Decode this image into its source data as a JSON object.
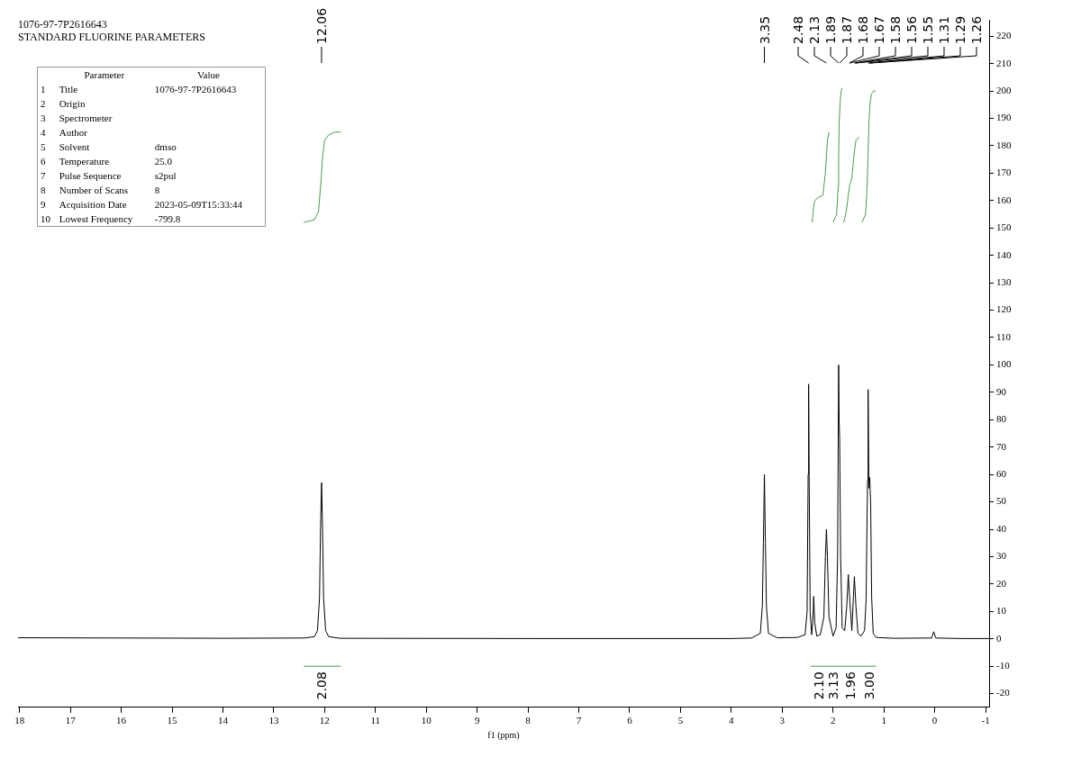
{
  "chart_data": {
    "type": "line",
    "title": "1076-97-7P2616643",
    "subtitle": "STANDARD FLUORINE PARAMETERS",
    "xlabel": "f1 (ppm)",
    "xlim": [
      18.03,
      -1.07
    ],
    "ylim": [
      -25,
      226
    ],
    "xticks": [
      18,
      17,
      16,
      15,
      14,
      13,
      12,
      11,
      10,
      9,
      8,
      7,
      6,
      5,
      4,
      3,
      2,
      1,
      0,
      -1
    ],
    "yticks": [
      -20,
      -10,
      0,
      10,
      20,
      30,
      40,
      50,
      60,
      70,
      80,
      90,
      100,
      110,
      120,
      130,
      140,
      150,
      160,
      170,
      180,
      190,
      200,
      210,
      220
    ],
    "grid": false,
    "legend": false,
    "marker": "none",
    "line_style": "solid",
    "series": [
      {
        "color": "#000000",
        "x": [
          18.03,
          16,
          14,
          12.4,
          12.2,
          12.14,
          12.1,
          12.08,
          12.06,
          12.04,
          12.02,
          11.98,
          11.92,
          11.7,
          8,
          4,
          3.6,
          3.43,
          3.39,
          3.37,
          3.35,
          3.33,
          3.31,
          3.27,
          3.1,
          2.7,
          2.55,
          2.51,
          2.49,
          2.48,
          2.47,
          2.45,
          2.42,
          2.4,
          2.38,
          2.36,
          2.32,
          2.25,
          2.18,
          2.15,
          2.13,
          2.11,
          2.08,
          2,
          1.94,
          1.91,
          1.89,
          1.88,
          1.87,
          1.85,
          1.82,
          1.77,
          1.73,
          1.7,
          1.67,
          1.63,
          1.6,
          1.58,
          1.55,
          1.51,
          1.45,
          1.38,
          1.35,
          1.33,
          1.32,
          1.31,
          1.295,
          1.28,
          1.26,
          1.24,
          1.21,
          1.15,
          0.8,
          0.06,
          0.02,
          -0.02,
          -0.5,
          -1.07
        ],
        "values": [
          0.4,
          0.3,
          0.2,
          0.3,
          0.8,
          3,
          15,
          40,
          57,
          40,
          15,
          3,
          0.8,
          0.2,
          0.1,
          0.1,
          0.3,
          2,
          12,
          35,
          60,
          35,
          12,
          2,
          0.4,
          0.5,
          1.5,
          10,
          60,
          93,
          60,
          10,
          1.5,
          6,
          15.5,
          6,
          1,
          1.5,
          8,
          30,
          40,
          30,
          8,
          1,
          4,
          30,
          100,
          80,
          73,
          30,
          4,
          3,
          12,
          23.5,
          14,
          3,
          15,
          22.7,
          12,
          2,
          1,
          3,
          14,
          45,
          58,
          91,
          55,
          59,
          50,
          15,
          2,
          0.5,
          0.2,
          0.3,
          2.6,
          0.3,
          0.1,
          0.1
        ]
      },
      {
        "color": "#4a9a4a",
        "x": [
          12.41,
          12.2,
          12.12,
          12.08,
          12.06,
          12.04,
          12,
          11.92,
          11.8,
          11.68
        ],
        "values": [
          152,
          153,
          156,
          165,
          170,
          176,
          182,
          184,
          185,
          185
        ]
      },
      {
        "color": "#4a9a4a",
        "x": [
          2.41,
          2.4,
          2.38,
          2.36,
          2.3,
          2.2,
          2.15,
          2.13,
          2.11,
          2.08,
          2.07
        ],
        "values": [
          152,
          154,
          158,
          160,
          161,
          162,
          170,
          176,
          182,
          185,
          185
        ]
      },
      {
        "color": "#4a9a4a",
        "x": [
          2,
          1.93,
          1.9,
          1.89,
          1.88,
          1.86,
          1.84,
          1.82
        ],
        "values": [
          152,
          155,
          165,
          175,
          188,
          196,
          200,
          201
        ]
      },
      {
        "color": "#4a9a4a",
        "x": [
          1.79,
          1.74,
          1.7,
          1.67,
          1.63,
          1.6,
          1.58,
          1.55,
          1.5,
          1.48
        ],
        "values": [
          152,
          156,
          162,
          166,
          168,
          174,
          178,
          182,
          183,
          183
        ]
      },
      {
        "color": "#4a9a4a",
        "x": [
          1.43,
          1.36,
          1.33,
          1.31,
          1.29,
          1.27,
          1.24,
          1.2,
          1.16
        ],
        "values": [
          152,
          155,
          165,
          178,
          190,
          196,
          199,
          200,
          200
        ]
      },
      {
        "color": "#4a9a4a",
        "x": [
          12.41,
          12.06,
          11.68,
          11,
          2.44,
          2.27,
          2.03,
          2,
          1.8,
          1.66,
          1.47,
          1.29,
          1.15
        ],
        "values": [
          -10,
          -10,
          -10,
          null,
          -10,
          -10,
          -10,
          -10,
          -10,
          -10,
          -10,
          -10,
          -10
        ]
      }
    ],
    "annotations": [
      "\tParameter\tValue",
      "1\tTitle\t1076-97-7P2616643",
      "2\tOrigin\t",
      "3\tSpectrometer\t",
      "4\tAuthor\t",
      "5\tSolvent\tdmso",
      "6\tTemperature\t25.0",
      "7\tPulse Sequence\ts2pul",
      "8\tNumber of Scans\t8",
      "9\tAcquisition Date\t2023-05-09T15:33:44",
      "10\tLowest Frequency\t-799.8",
      {
        "text": "12.06",
        "x": 12.06
      },
      {
        "text": "3.35",
        "x": 3.35
      },
      {
        "text": "2.48",
        "x": 2.48
      },
      {
        "text": "2.13",
        "x": 2.13
      },
      {
        "text": "1.89",
        "x": 1.89
      },
      {
        "text": "1.87",
        "x": 1.87
      },
      {
        "text": "1.68",
        "x": 1.68
      },
      {
        "text": "1.67",
        "x": 1.67
      },
      {
        "text": "1.58",
        "x": 1.58
      },
      {
        "text": "1.56",
        "x": 1.56
      },
      {
        "text": "1.55",
        "x": 1.55
      },
      {
        "text": "1.31",
        "x": 1.31
      },
      {
        "text": "1.29",
        "x": 1.29
      },
      {
        "text": "1.26",
        "x": 1.26
      },
      {
        "text": "2.08",
        "x": 12.06,
        "y": -10
      },
      {
        "text": "2.10",
        "x": 2.27,
        "y": -10
      },
      {
        "text": "3.13",
        "x": 2,
        "y": -10
      },
      {
        "text": "1.96",
        "x": 1.66,
        "y": -10
      },
      {
        "text": "3.00",
        "x": 1.29,
        "y": -10
      }
    ]
  }
}
